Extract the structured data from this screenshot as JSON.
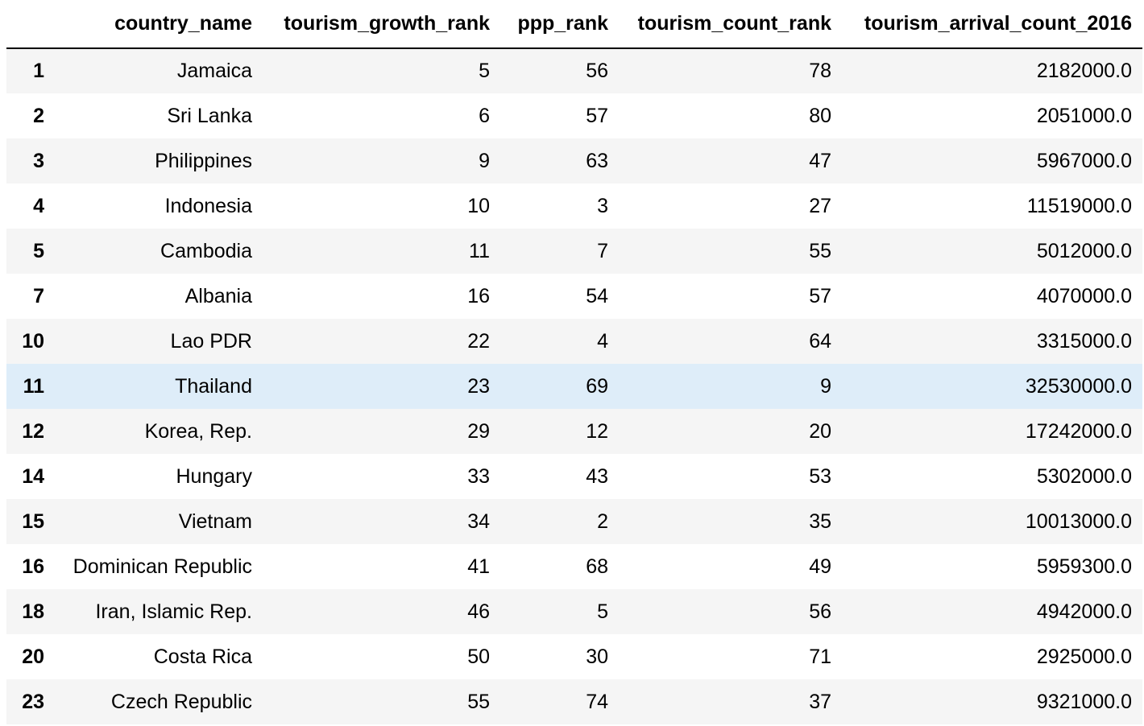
{
  "table": {
    "columns": [
      "",
      "country_name",
      "tourism_growth_rank",
      "ppp_rank",
      "tourism_count_rank",
      "tourism_arrival_count_2016"
    ],
    "highlighted_row": 7,
    "colors": {
      "row_odd": "#f5f5f5",
      "row_even": "#ffffff",
      "row_hover": "#deedf9",
      "header_rule": "#000000"
    },
    "rows": [
      {
        "index": "1",
        "country_name": "Jamaica",
        "tourism_growth_rank": "5",
        "ppp_rank": "56",
        "tourism_count_rank": "78",
        "tourism_arrival_count_2016": "2182000.0"
      },
      {
        "index": "2",
        "country_name": "Sri Lanka",
        "tourism_growth_rank": "6",
        "ppp_rank": "57",
        "tourism_count_rank": "80",
        "tourism_arrival_count_2016": "2051000.0"
      },
      {
        "index": "3",
        "country_name": "Philippines",
        "tourism_growth_rank": "9",
        "ppp_rank": "63",
        "tourism_count_rank": "47",
        "tourism_arrival_count_2016": "5967000.0"
      },
      {
        "index": "4",
        "country_name": "Indonesia",
        "tourism_growth_rank": "10",
        "ppp_rank": "3",
        "tourism_count_rank": "27",
        "tourism_arrival_count_2016": "11519000.0"
      },
      {
        "index": "5",
        "country_name": "Cambodia",
        "tourism_growth_rank": "11",
        "ppp_rank": "7",
        "tourism_count_rank": "55",
        "tourism_arrival_count_2016": "5012000.0"
      },
      {
        "index": "7",
        "country_name": "Albania",
        "tourism_growth_rank": "16",
        "ppp_rank": "54",
        "tourism_count_rank": "57",
        "tourism_arrival_count_2016": "4070000.0"
      },
      {
        "index": "10",
        "country_name": "Lao PDR",
        "tourism_growth_rank": "22",
        "ppp_rank": "4",
        "tourism_count_rank": "64",
        "tourism_arrival_count_2016": "3315000.0"
      },
      {
        "index": "11",
        "country_name": "Thailand",
        "tourism_growth_rank": "23",
        "ppp_rank": "69",
        "tourism_count_rank": "9",
        "tourism_arrival_count_2016": "32530000.0"
      },
      {
        "index": "12",
        "country_name": "Korea, Rep.",
        "tourism_growth_rank": "29",
        "ppp_rank": "12",
        "tourism_count_rank": "20",
        "tourism_arrival_count_2016": "17242000.0"
      },
      {
        "index": "14",
        "country_name": "Hungary",
        "tourism_growth_rank": "33",
        "ppp_rank": "43",
        "tourism_count_rank": "53",
        "tourism_arrival_count_2016": "5302000.0"
      },
      {
        "index": "15",
        "country_name": "Vietnam",
        "tourism_growth_rank": "34",
        "ppp_rank": "2",
        "tourism_count_rank": "35",
        "tourism_arrival_count_2016": "10013000.0"
      },
      {
        "index": "16",
        "country_name": "Dominican Republic",
        "tourism_growth_rank": "41",
        "ppp_rank": "68",
        "tourism_count_rank": "49",
        "tourism_arrival_count_2016": "5959300.0"
      },
      {
        "index": "18",
        "country_name": "Iran, Islamic Rep.",
        "tourism_growth_rank": "46",
        "ppp_rank": "5",
        "tourism_count_rank": "56",
        "tourism_arrival_count_2016": "4942000.0"
      },
      {
        "index": "20",
        "country_name": "Costa Rica",
        "tourism_growth_rank": "50",
        "ppp_rank": "30",
        "tourism_count_rank": "71",
        "tourism_arrival_count_2016": "2925000.0"
      },
      {
        "index": "23",
        "country_name": "Czech Republic",
        "tourism_growth_rank": "55",
        "ppp_rank": "74",
        "tourism_count_rank": "37",
        "tourism_arrival_count_2016": "9321000.0"
      }
    ]
  }
}
